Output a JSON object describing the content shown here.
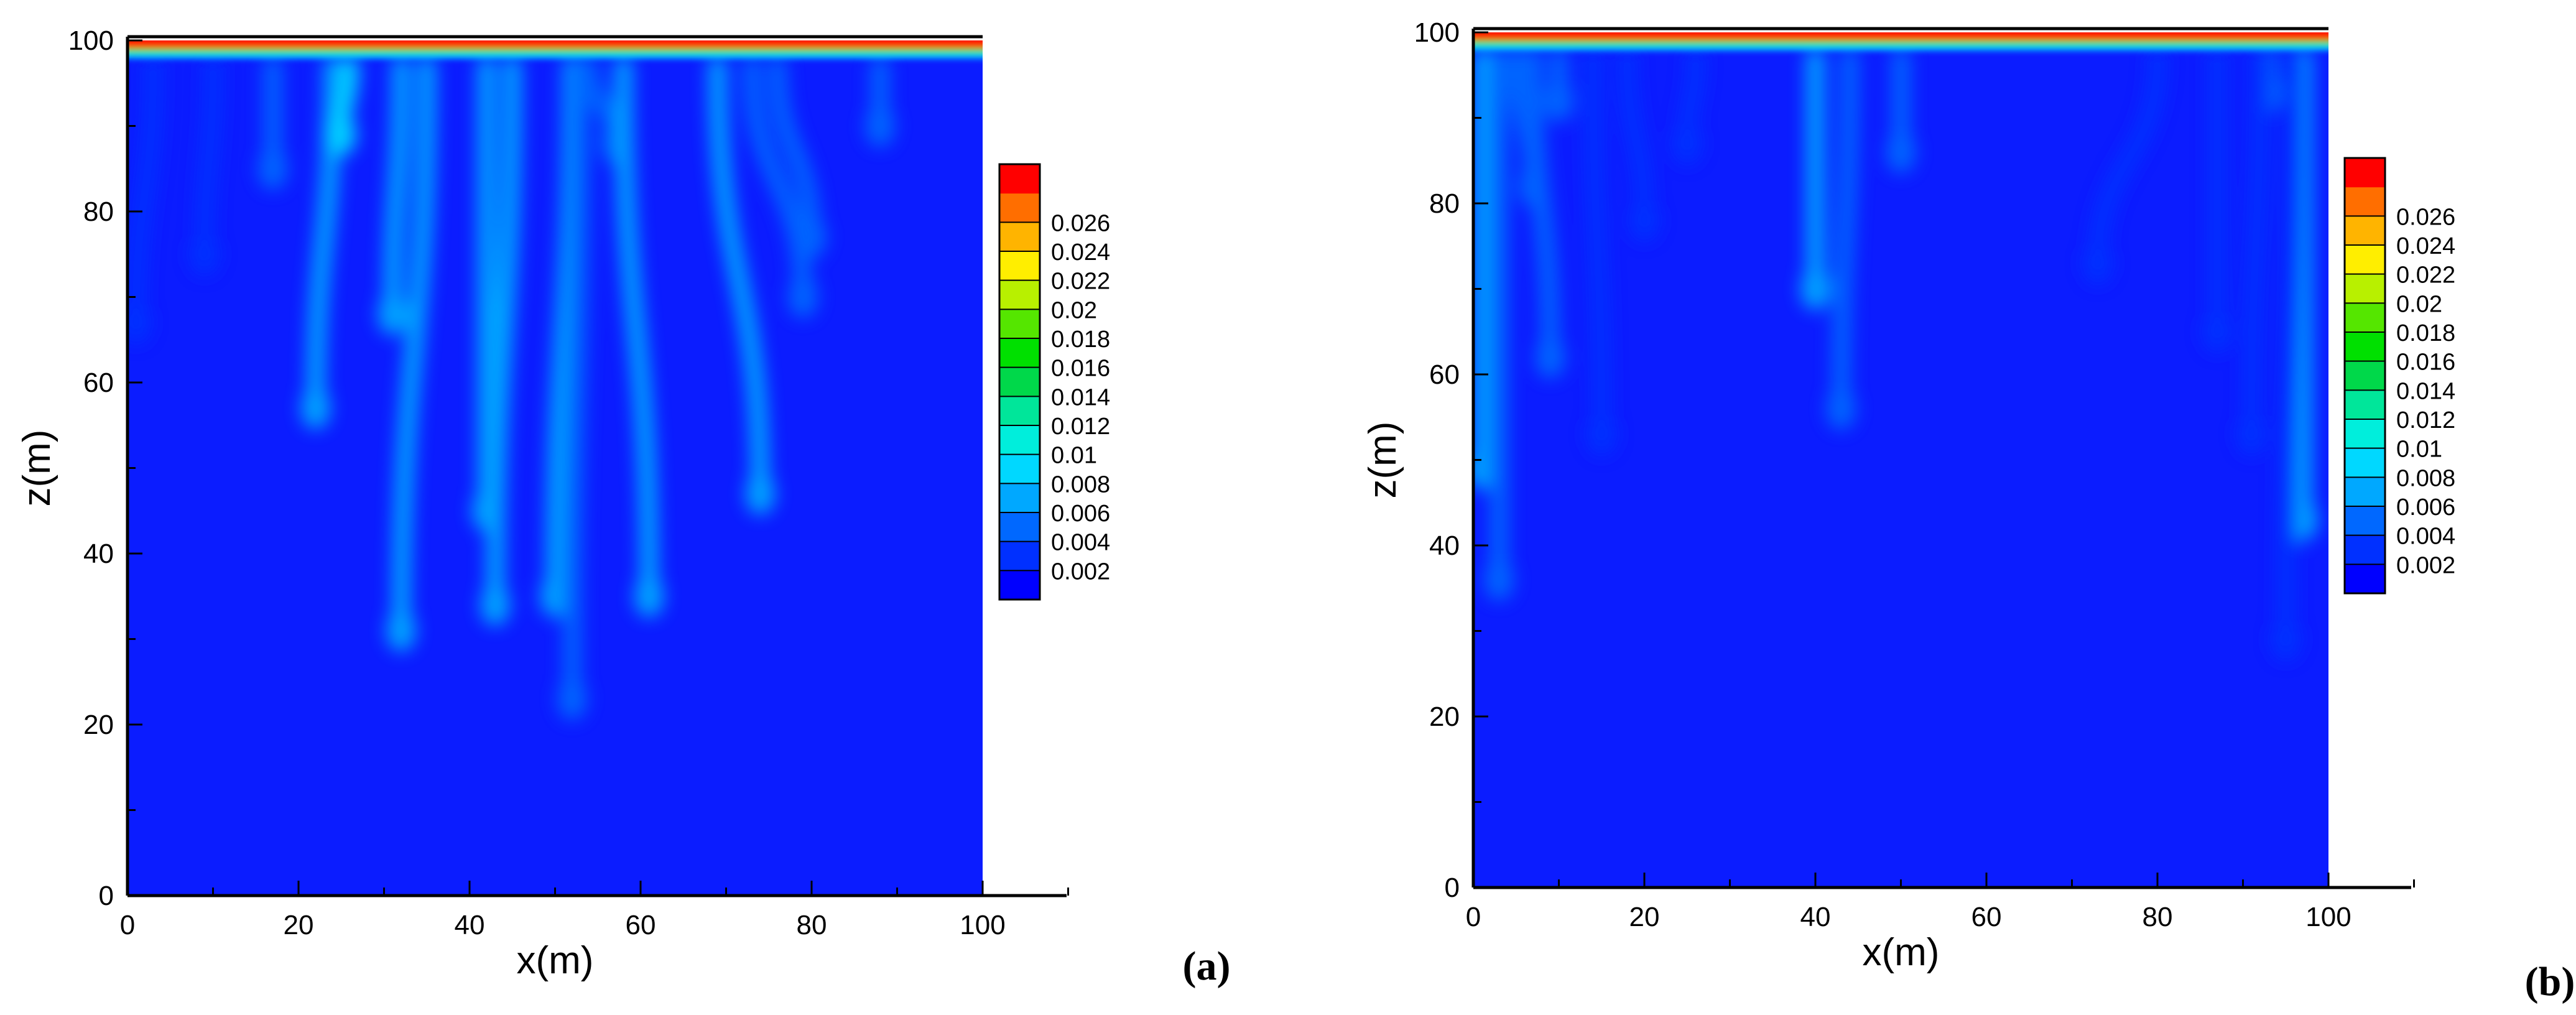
{
  "colors": {
    "background_field": "#0b1cff",
    "levels": [
      "#0000ff",
      "#0030ff",
      "#0068ff",
      "#00a8ff",
      "#00d8ff",
      "#00eedc",
      "#00e69a",
      "#00d84a",
      "#00e000",
      "#55e600",
      "#b8f000",
      "#ffee00",
      "#ffb400",
      "#ff6e00",
      "#ff0000"
    ]
  },
  "chart_data": [
    {
      "type": "heatmap",
      "panel_label": "(a)",
      "xlabel": "x(m)",
      "ylabel": "z(m)",
      "xlim": [
        0,
        110
      ],
      "ylim": [
        0,
        100
      ],
      "field_extent": {
        "x": [
          0,
          100
        ],
        "z": [
          0,
          100
        ]
      },
      "xticks": [
        0,
        20,
        40,
        60,
        80,
        100
      ],
      "yticks": [
        0,
        20,
        40,
        60,
        80,
        100
      ],
      "minor_xticks": [
        10,
        30,
        50,
        70,
        90,
        110
      ],
      "legend": {
        "position": "right",
        "levels": [
          "0.002",
          "0.004",
          "0.006",
          "0.008",
          "0.01",
          "0.012",
          "0.014",
          "0.016",
          "0.018",
          "0.02",
          "0.022",
          "0.024",
          "0.026"
        ]
      },
      "surface_layer": {
        "value": 0.026,
        "top_z": 100,
        "bottom_z": 98.5
      },
      "fingers": [
        {
          "x_top": 3,
          "z_top": 97,
          "x_tip": 1,
          "z_tip": 67,
          "value": 0.004
        },
        {
          "x_top": 10,
          "z_top": 97,
          "x_tip": 9,
          "z_tip": 75,
          "value": 0.004
        },
        {
          "x_top": 17,
          "z_top": 97,
          "x_tip": 17,
          "z_tip": 85,
          "value": 0.005
        },
        {
          "x_top": 24,
          "z_top": 97,
          "x_tip": 22,
          "z_tip": 57,
          "value": 0.007
        },
        {
          "x_top": 26,
          "z_top": 97,
          "x_tip": 25,
          "z_tip": 89,
          "value": 0.009
        },
        {
          "x_top": 32,
          "z_top": 97,
          "x_tip": 31,
          "z_tip": 68,
          "value": 0.007
        },
        {
          "x_top": 35,
          "z_top": 97,
          "x_tip": 32,
          "z_tip": 31,
          "value": 0.007
        },
        {
          "x_top": 42,
          "z_top": 97,
          "x_tip": 42,
          "z_tip": 45,
          "value": 0.008
        },
        {
          "x_top": 45,
          "z_top": 97,
          "x_tip": 43,
          "z_tip": 34,
          "value": 0.007
        },
        {
          "x_top": 52,
          "z_top": 97,
          "x_tip": 50,
          "z_tip": 35,
          "value": 0.007
        },
        {
          "x_top": 53,
          "z_top": 97,
          "x_tip": 52,
          "z_tip": 23,
          "value": 0.006
        },
        {
          "x_top": 54,
          "z_top": 97,
          "x_tip": 57,
          "z_tip": 88,
          "value": 0.006
        },
        {
          "x_top": 58,
          "z_top": 97,
          "x_tip": 61,
          "z_tip": 35,
          "value": 0.007
        },
        {
          "x_top": 69,
          "z_top": 97,
          "x_tip": 74,
          "z_tip": 47,
          "value": 0.008
        },
        {
          "x_top": 73,
          "z_top": 97,
          "x_tip": 79,
          "z_tip": 70,
          "value": 0.006
        },
        {
          "x_top": 76,
          "z_top": 97,
          "x_tip": 80,
          "z_tip": 77,
          "value": 0.006
        },
        {
          "x_top": 88,
          "z_top": 97,
          "x_tip": 88,
          "z_tip": 90,
          "value": 0.006
        }
      ]
    },
    {
      "type": "heatmap",
      "panel_label": "(b)",
      "xlabel": "x(m)",
      "ylabel": "z(m)",
      "xlim": [
        0,
        110
      ],
      "ylim": [
        0,
        100
      ],
      "field_extent": {
        "x": [
          0,
          100
        ],
        "z": [
          0,
          100
        ]
      },
      "xticks": [
        0,
        20,
        40,
        60,
        80,
        100
      ],
      "yticks": [
        0,
        20,
        40,
        60,
        80,
        100
      ],
      "minor_xticks": [
        10,
        30,
        50,
        70,
        90,
        110
      ],
      "legend": {
        "position": "right",
        "levels": [
          "0.002",
          "0.004",
          "0.006",
          "0.008",
          "0.01",
          "0.012",
          "0.014",
          "0.016",
          "0.018",
          "0.02",
          "0.022",
          "0.024",
          "0.026"
        ]
      },
      "surface_layer": {
        "value": 0.026,
        "top_z": 100,
        "bottom_z": 98.5
      },
      "fingers": [
        {
          "x_top": 1,
          "z_top": 97,
          "x_tip": 1,
          "z_tip": 49,
          "value": 0.008
        },
        {
          "x_top": 3,
          "z_top": 97,
          "x_tip": 3,
          "z_tip": 36,
          "value": 0.005
        },
        {
          "x_top": 5,
          "z_top": 97,
          "x_tip": 7,
          "z_tip": 82,
          "value": 0.006
        },
        {
          "x_top": 7,
          "z_top": 97,
          "x_tip": 9,
          "z_tip": 62,
          "value": 0.005
        },
        {
          "x_top": 10,
          "z_top": 97,
          "x_tip": 10,
          "z_tip": 92,
          "value": 0.006
        },
        {
          "x_top": 14,
          "z_top": 97,
          "x_tip": 15,
          "z_tip": 53,
          "value": 0.004
        },
        {
          "x_top": 18,
          "z_top": 97,
          "x_tip": 20,
          "z_tip": 78,
          "value": 0.004
        },
        {
          "x_top": 26,
          "z_top": 97,
          "x_tip": 25,
          "z_tip": 87,
          "value": 0.004
        },
        {
          "x_top": 40,
          "z_top": 97,
          "x_tip": 40,
          "z_tip": 70,
          "value": 0.007
        },
        {
          "x_top": 44,
          "z_top": 97,
          "x_tip": 43,
          "z_tip": 56,
          "value": 0.006
        },
        {
          "x_top": 50,
          "z_top": 97,
          "x_tip": 50,
          "z_tip": 86,
          "value": 0.006
        },
        {
          "x_top": 80,
          "z_top": 97,
          "x_tip": 73,
          "z_tip": 73,
          "value": 0.004
        },
        {
          "x_top": 87,
          "z_top": 97,
          "x_tip": 87,
          "z_tip": 65,
          "value": 0.004
        },
        {
          "x_top": 93,
          "z_top": 97,
          "x_tip": 93,
          "z_tip": 93,
          "value": 0.006
        },
        {
          "x_top": 97,
          "z_top": 97,
          "x_tip": 97,
          "z_tip": 43,
          "value": 0.008
        },
        {
          "x_top": 92,
          "z_top": 97,
          "x_tip": 91,
          "z_tip": 53,
          "value": 0.004
        },
        {
          "x_top": 96,
          "z_top": 97,
          "x_tip": 95,
          "z_tip": 29,
          "value": 0.004
        }
      ]
    }
  ]
}
